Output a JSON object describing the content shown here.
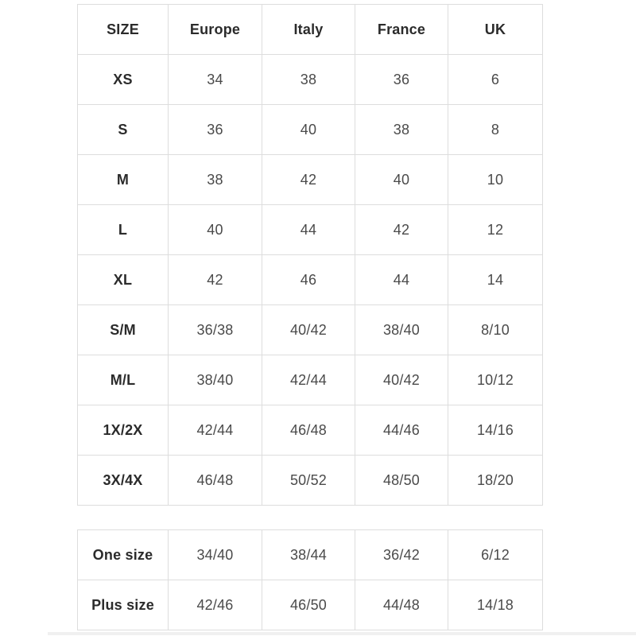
{
  "colors": {
    "background": "#ffffff",
    "border": "#dddddd",
    "header_text": "#2b2b2b",
    "cell_text": "#4a4a4a"
  },
  "size_table": {
    "columns": [
      "SIZE",
      "Europe",
      "Italy",
      "France",
      "UK"
    ],
    "rows": [
      {
        "label": "XS",
        "values": [
          "34",
          "38",
          "36",
          "6"
        ]
      },
      {
        "label": "S",
        "values": [
          "36",
          "40",
          "38",
          "8"
        ]
      },
      {
        "label": "M",
        "values": [
          "38",
          "42",
          "40",
          "10"
        ]
      },
      {
        "label": "L",
        "values": [
          "40",
          "44",
          "42",
          "12"
        ]
      },
      {
        "label": "XL",
        "values": [
          "42",
          "46",
          "44",
          "14"
        ]
      },
      {
        "label": "S/M",
        "values": [
          "36/38",
          "40/42",
          "38/40",
          "8/10"
        ]
      },
      {
        "label": "M/L",
        "values": [
          "38/40",
          "42/44",
          "40/42",
          "10/12"
        ]
      },
      {
        "label": "1X/2X",
        "values": [
          "42/44",
          "46/48",
          "44/46",
          "14/16"
        ]
      },
      {
        "label": "3X/4X",
        "values": [
          "46/48",
          "50/52",
          "48/50",
          "18/20"
        ]
      }
    ]
  },
  "special_size_table": {
    "rows": [
      {
        "label": "One size",
        "values": [
          "34/40",
          "38/44",
          "36/42",
          "6/12"
        ]
      },
      {
        "label": "Plus size",
        "values": [
          "42/46",
          "46/50",
          "44/48",
          "14/18"
        ]
      }
    ]
  }
}
